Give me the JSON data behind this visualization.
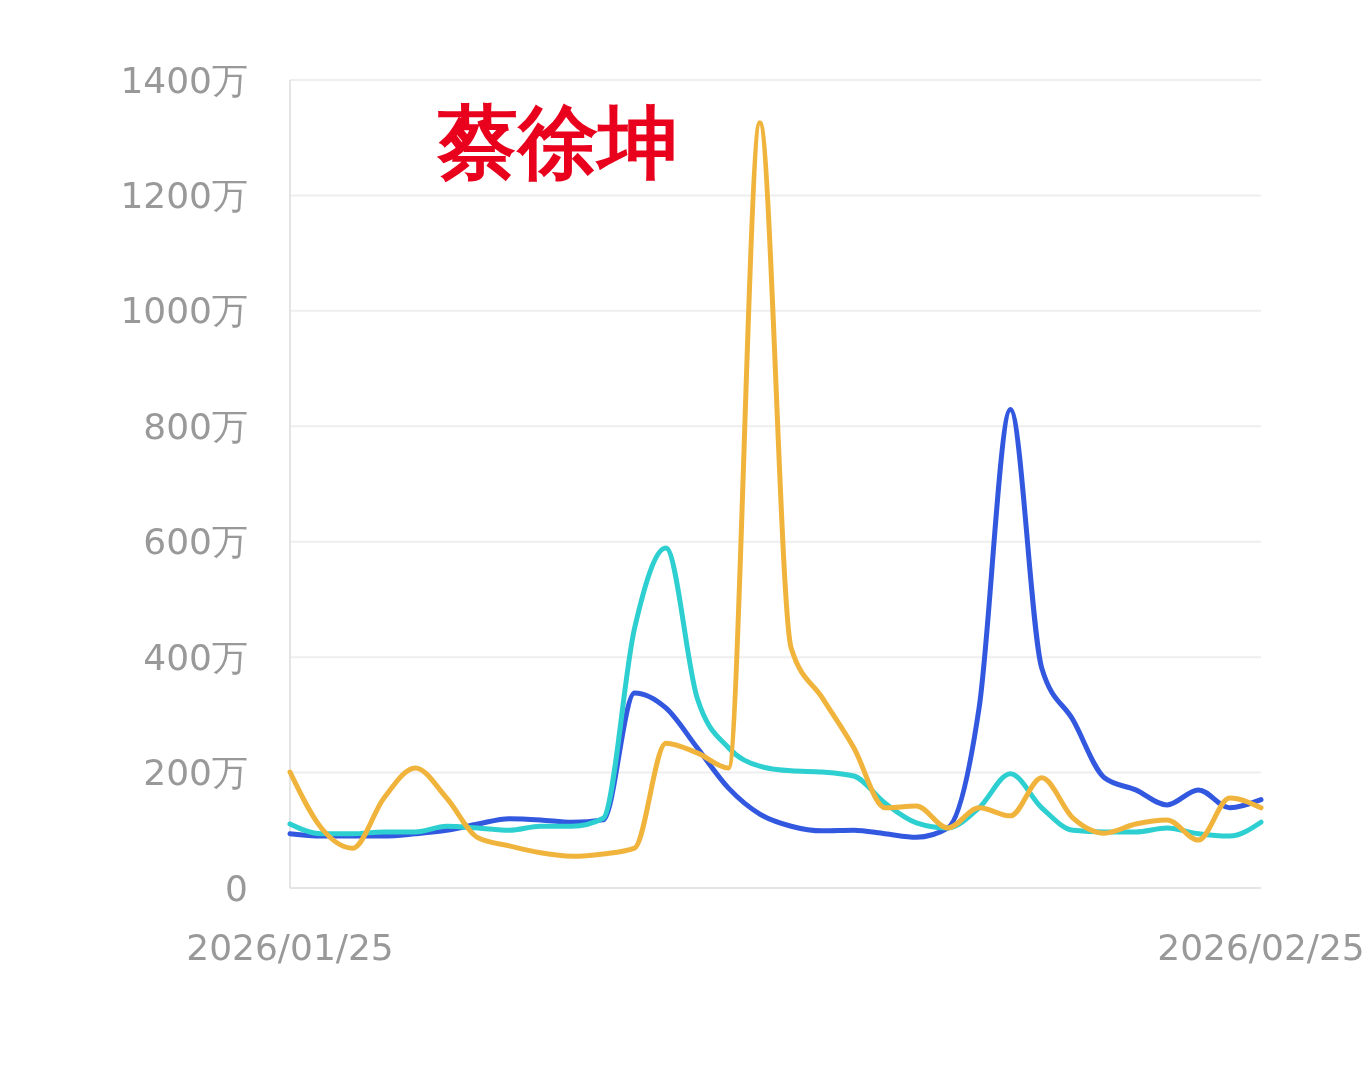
{
  "chart_data": {
    "type": "line",
    "title": "蔡徐坤",
    "x": [
      "2026-01-25",
      "2026-01-26",
      "2026-01-27",
      "2026-01-28",
      "2026-01-29",
      "2026-01-30",
      "2026-01-31",
      "2026-02-01",
      "2026-02-02",
      "2026-02-03",
      "2026-02-04",
      "2026-02-05",
      "2026-02-06",
      "2026-02-07",
      "2026-02-08",
      "2026-02-09",
      "2026-02-10",
      "2026-02-11",
      "2026-02-12",
      "2026-02-13",
      "2026-02-14",
      "2026-02-15",
      "2026-02-16",
      "2026-02-17",
      "2026-02-18",
      "2026-02-19",
      "2026-02-20",
      "2026-02-21",
      "2026-02-22",
      "2026-02-23",
      "2026-02-24",
      "2026-02-25"
    ],
    "series": [
      {
        "color": "#3358e0",
        "values": [
          94,
          90,
          90,
          90,
          94,
          100,
          111,
          120,
          118,
          114,
          118,
          338,
          312,
          243,
          173,
          128,
          107,
          99,
          100,
          94,
          88,
          104,
          312,
          829,
          381,
          291,
          191,
          170,
          144,
          170,
          139,
          153
        ]
      },
      {
        "color": "#2ecfd0",
        "values": [
          111,
          94,
          94,
          97,
          97,
          107,
          104,
          100,
          107,
          107,
          121,
          450,
          589,
          329,
          243,
          211,
          203,
          201,
          194,
          147,
          113,
          104,
          139,
          198,
          139,
          100,
          97,
          97,
          104,
          94,
          90,
          114
        ]
      },
      {
        "color": "#f0b43c",
        "values": [
          201,
          104,
          69,
          156,
          208,
          156,
          87,
          73,
          61,
          55,
          59,
          69,
          251,
          234,
          208,
          1326,
          416,
          329,
          243,
          139,
          142,
          104,
          139,
          125,
          191,
          121,
          95,
          111,
          118,
          83,
          156,
          139
        ]
      }
    ],
    "xlim": [
      "2026-01-25",
      "2026-02-25"
    ],
    "xticks": [
      {
        "value": "2026-01-25",
        "label": "2026/01/25"
      },
      {
        "value": "2026-02-25",
        "label": "2026/02/25"
      }
    ],
    "ylim": [
      0,
      1400
    ],
    "yticks": [
      {
        "value": 0,
        "label": "0"
      },
      {
        "value": 200,
        "label": "200万"
      },
      {
        "value": 400,
        "label": "400万"
      },
      {
        "value": 600,
        "label": "600万"
      },
      {
        "value": 800,
        "label": "800万"
      },
      {
        "value": 1000,
        "label": "1000万"
      },
      {
        "value": 1200,
        "label": "1200万"
      },
      {
        "value": 1400,
        "label": "1400万"
      }
    ],
    "grid": "y",
    "marker": "none",
    "line_style": "solid"
  }
}
